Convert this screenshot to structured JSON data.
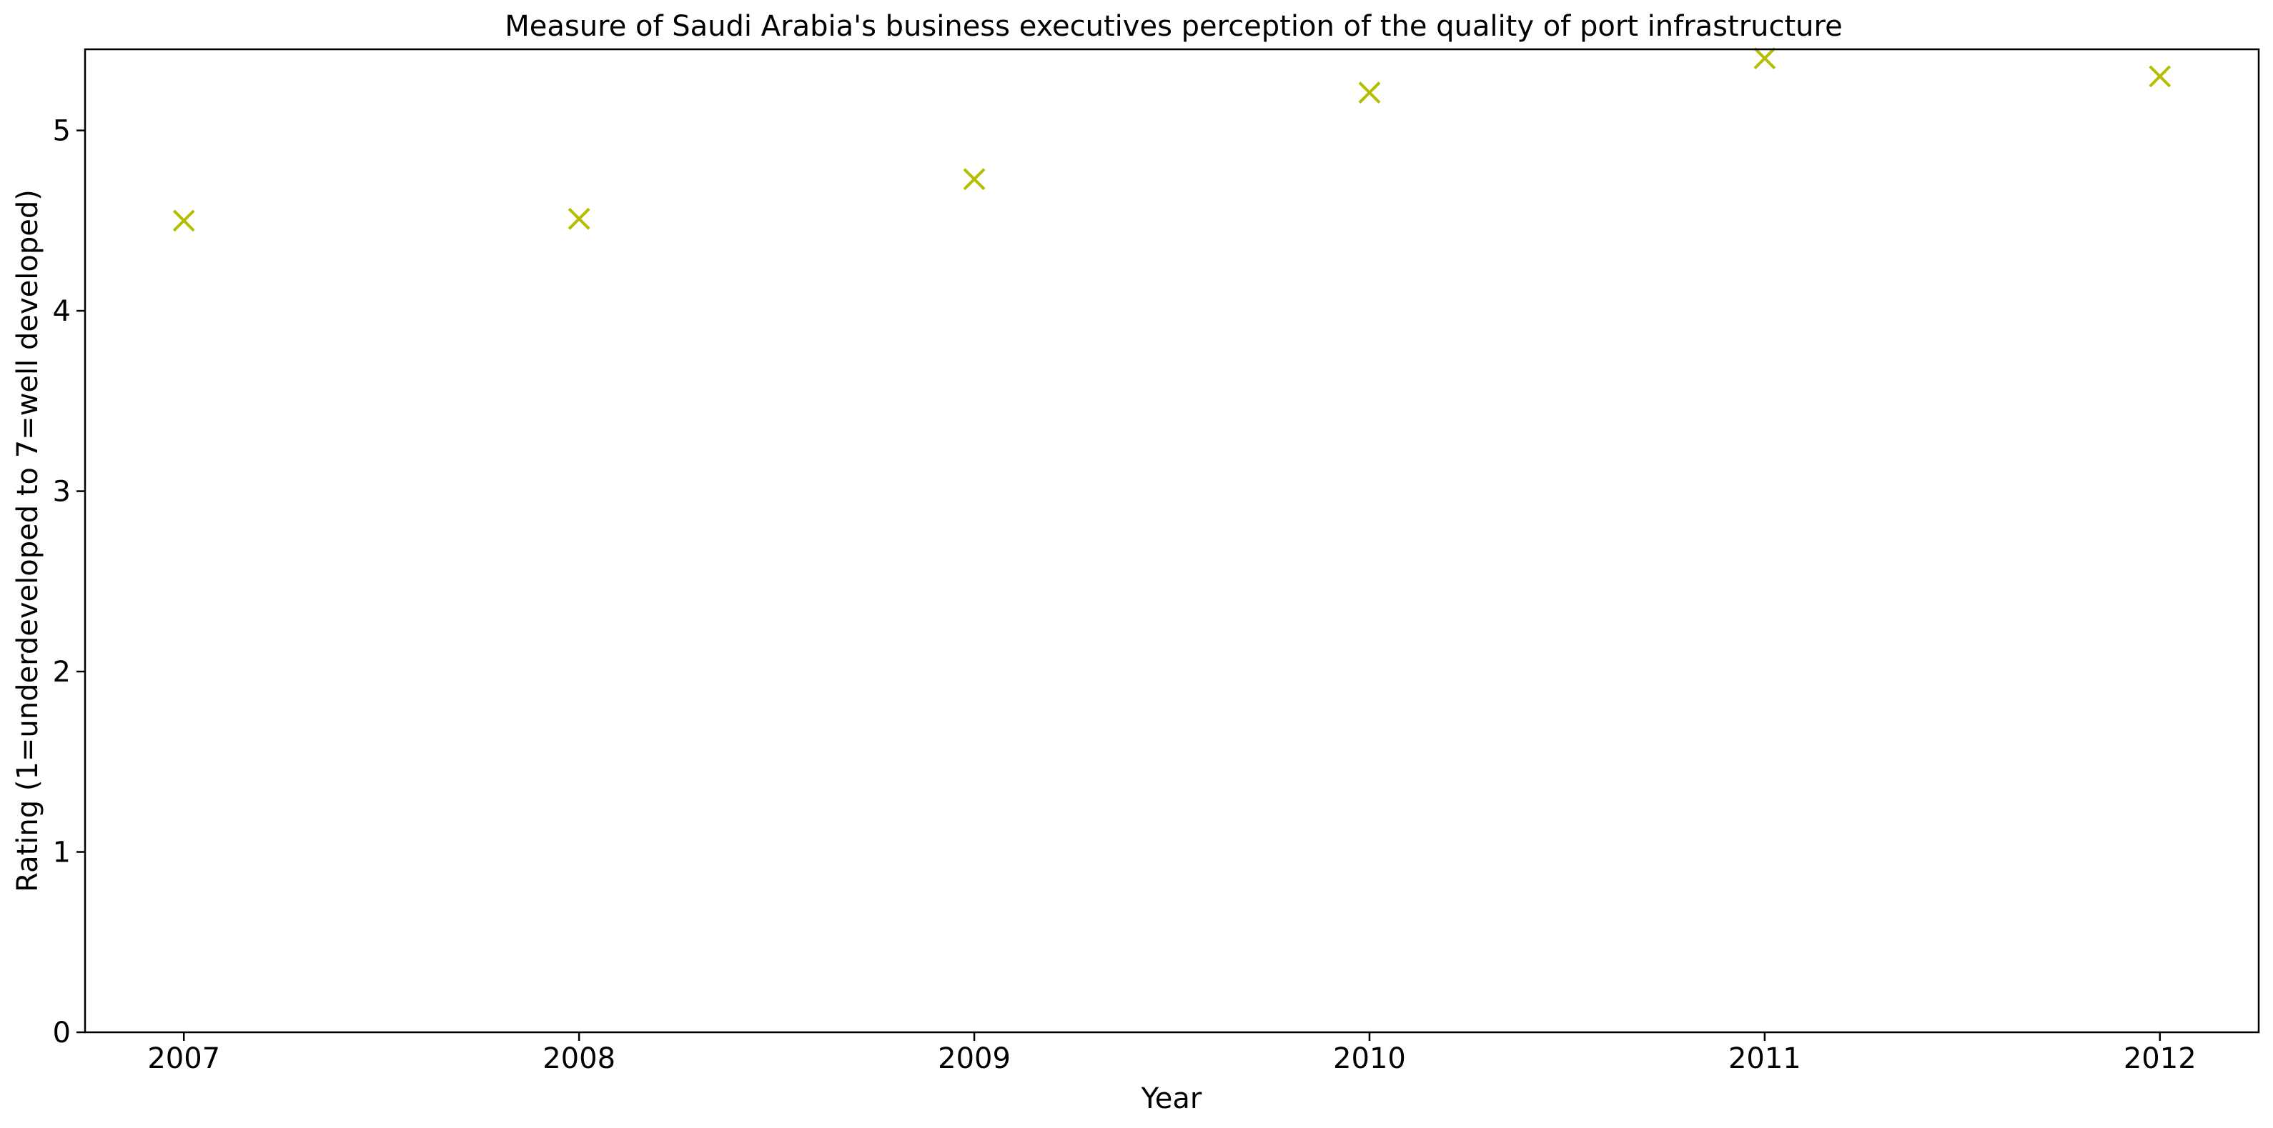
{
  "chart_data": {
    "type": "scatter",
    "title": "Measure of Saudi Arabia's business executives perception of the quality of port infrastructure",
    "xlabel": "Year",
    "ylabel": "Rating (1=underdeveloped to 7=well developed)",
    "x": [
      "2007",
      "2008",
      "2009",
      "2010",
      "2011",
      "2012"
    ],
    "y": [
      4.5,
      4.51,
      4.73,
      5.21,
      5.4,
      5.3
    ],
    "xlim": [
      2006.75,
      2012.25
    ],
    "ylim": [
      0,
      5.45
    ],
    "yticks": [
      "0",
      "1",
      "2",
      "3",
      "4",
      "5"
    ],
    "marker": "x",
    "color": "#b5bd00",
    "grid": false,
    "legend": "none"
  }
}
